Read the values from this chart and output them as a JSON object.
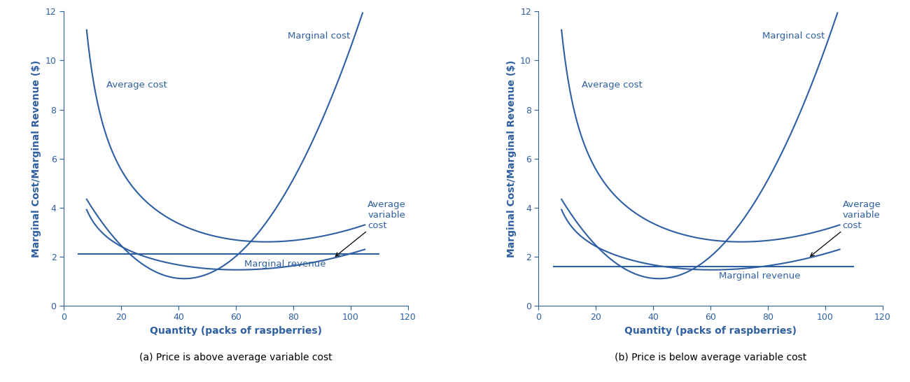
{
  "color": "#2E5FA3",
  "bg_color": "#ffffff",
  "xlim": [
    0,
    120
  ],
  "ylim": [
    0,
    12
  ],
  "xticks": [
    0,
    20,
    40,
    60,
    80,
    100,
    120
  ],
  "yticks": [
    0,
    2,
    4,
    6,
    8,
    10,
    12
  ],
  "xlabel": "Quantity (packs of raspberries)",
  "ylabel": "Marginal Cost/Marginal Revenue ($)",
  "mr_a": 2.1,
  "mr_b": 1.6,
  "subtitle_a": "(a) Price is above average variable cost",
  "subtitle_b": "(b) Price is below average variable cost",
  "fontsize_annot": 9.5,
  "fontsize_axis_label": 10,
  "fontsize_sub": 10,
  "linewidth": 1.5
}
